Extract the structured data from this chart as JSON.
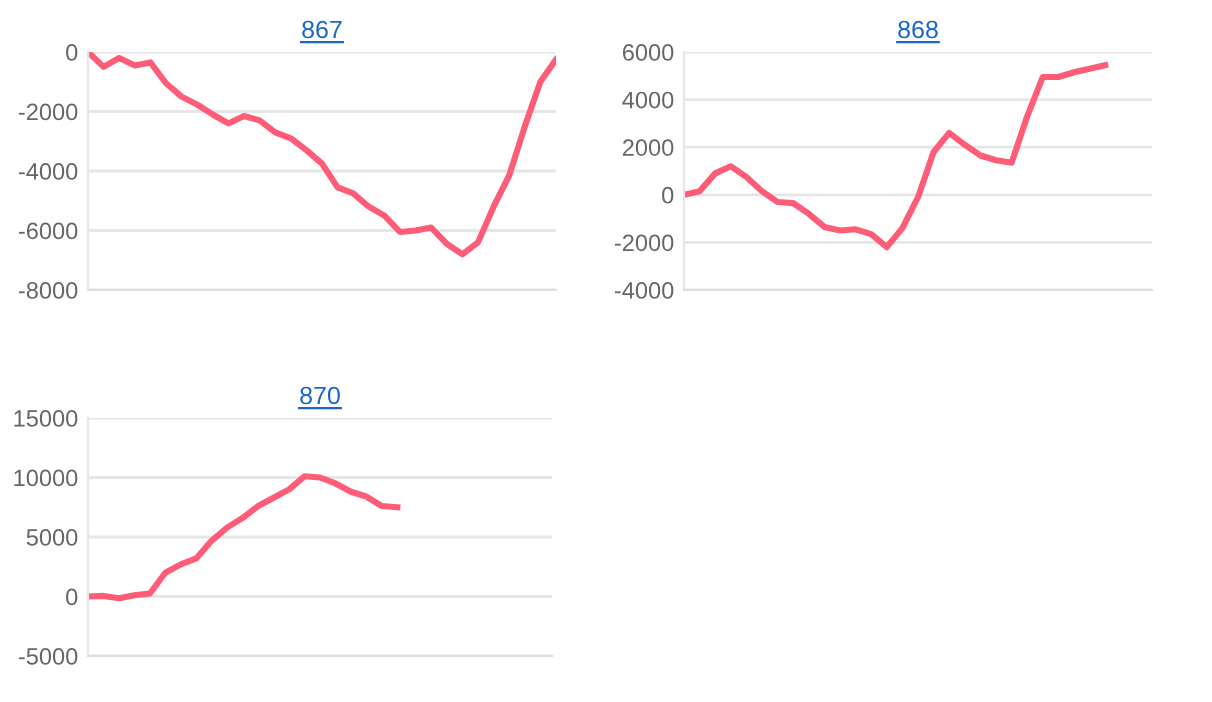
{
  "chart_data": [
    {
      "type": "line",
      "title": "867",
      "categories": [
        null,
        null,
        null,
        null,
        null,
        null,
        null,
        null,
        null,
        null,
        null,
        null,
        null,
        null,
        null,
        null,
        null,
        null,
        null,
        null,
        null,
        null,
        null,
        null,
        null,
        null,
        null,
        null,
        null,
        null,
        null
      ],
      "series": [
        {
          "color": "#ff5c77",
          "values": [
            0,
            -500,
            -200,
            -450,
            -350,
            -1050,
            -1500,
            -1770,
            -2100,
            -2400,
            -2150,
            -2300,
            -2700,
            -2900,
            -3300,
            -3750,
            -4550,
            -4750,
            -5200,
            -5500,
            -6050,
            -6000,
            -5900,
            -6450,
            -6800,
            -6400,
            -5200,
            -4150,
            -2500,
            -1000,
            -250
          ]
        }
      ],
      "ylim": [
        -8000,
        0
      ],
      "yticks": [
        -8000,
        -6000,
        -4000,
        -2000,
        0
      ],
      "grid": "y",
      "marker": "none",
      "line_style": "solid",
      "tick_labels": "y"
    },
    {
      "type": "line",
      "title": "868",
      "categories": [
        null,
        null,
        null,
        null,
        null,
        null,
        null,
        null,
        null,
        null,
        null,
        null,
        null,
        null,
        null,
        null,
        null,
        null,
        null,
        null,
        null,
        null,
        null,
        null,
        null,
        null,
        null,
        null,
        null,
        null,
        null
      ],
      "series": [
        {
          "color": "#ff5c77",
          "values": [
            0,
            150,
            900,
            1200,
            750,
            150,
            -300,
            -350,
            -800,
            -1350,
            -1500,
            -1450,
            -1650,
            -2200,
            -1400,
            -100,
            1800,
            2600,
            2100,
            1650,
            1450,
            1350,
            3300,
            4950,
            4950,
            5150,
            5300,
            5450,
            null,
            null,
            null
          ]
        }
      ],
      "ylim": [
        -4000,
        6000
      ],
      "yticks": [
        -4000,
        -2000,
        0,
        2000,
        4000,
        6000
      ],
      "grid": "y",
      "marker": "none",
      "line_style": "solid",
      "tick_labels": "y"
    },
    {
      "type": "line",
      "title": "870",
      "categories": [
        null,
        null,
        null,
        null,
        null,
        null,
        null,
        null,
        null,
        null,
        null,
        null,
        null,
        null,
        null,
        null,
        null,
        null,
        null,
        null,
        null,
        null,
        null,
        null,
        null,
        null,
        null,
        null,
        null,
        null,
        null
      ],
      "series": [
        {
          "color": "#ff5c77",
          "values": [
            0,
            50,
            -150,
            100,
            250,
            2000,
            2700,
            3200,
            4700,
            5800,
            6600,
            7600,
            8300,
            9000,
            10100,
            10000,
            9500,
            8800,
            8400,
            7600,
            7500,
            null,
            null,
            null,
            null,
            null,
            null,
            null,
            null,
            null,
            null
          ]
        }
      ],
      "ylim": [
        -5000,
        15000
      ],
      "yticks": [
        -5000,
        0,
        5000,
        10000,
        15000
      ],
      "grid": "y",
      "marker": "none",
      "line_style": "solid",
      "tick_labels": "y"
    }
  ]
}
